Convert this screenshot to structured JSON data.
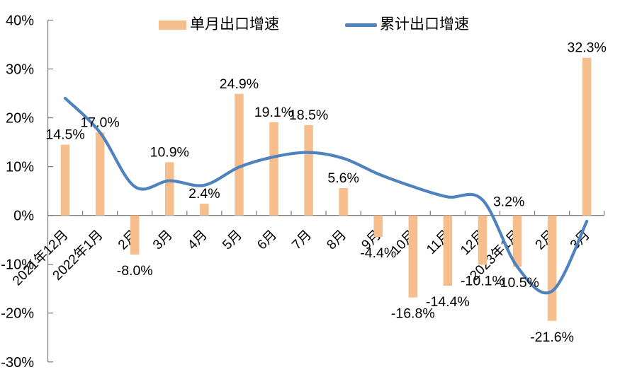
{
  "chart_data": {
    "type": "bar+line combo",
    "title": "",
    "grid": false,
    "legend_position": "top",
    "categories": [
      "2021年12月",
      "2022年1月",
      "2月",
      "3月",
      "4月",
      "5月",
      "6月",
      "7月",
      "8月",
      "9月",
      "10月",
      "11月",
      "12月",
      "2023年1月",
      "2月",
      "3月"
    ],
    "series": [
      {
        "name": "单月出口增速",
        "type": "bar",
        "color": "#F6BE8D",
        "values": [
          14.5,
          17.0,
          -8.0,
          10.9,
          2.4,
          24.9,
          19.1,
          18.5,
          5.6,
          -4.4,
          -16.8,
          -14.4,
          -10.1,
          -10.5,
          -21.6,
          32.3
        ],
        "data_labels": [
          "14.5%",
          "17.0%",
          "-8.0%",
          "10.9%",
          "2.4%",
          "24.9%",
          "19.1%",
          "18.5%",
          "5.6%",
          "-4.4%",
          "-16.8%",
          "-14.4%",
          "-10.1%",
          "-10.5%",
          "-21.6%",
          "32.3%"
        ]
      },
      {
        "name": "累计出口增速",
        "type": "line",
        "color": "#5082BE",
        "smooth": true,
        "values": [
          24.0,
          17.0,
          5.9,
          7.1,
          6.2,
          9.9,
          12.0,
          12.9,
          11.7,
          8.5,
          5.9,
          3.8,
          3.2,
          -10.5,
          -15.5,
          -1.2
        ],
        "point_label": {
          "index": 12,
          "text": "3.2%",
          "position": "right"
        }
      }
    ],
    "y_axis": {
      "min": -30,
      "max": 40,
      "step": 10,
      "tick_labels": [
        "40%",
        "30%",
        "20%",
        "10%",
        "0%",
        "-10%",
        "-20%",
        "-30%"
      ]
    },
    "axis_color": "#808080",
    "text_color": "#000000"
  }
}
